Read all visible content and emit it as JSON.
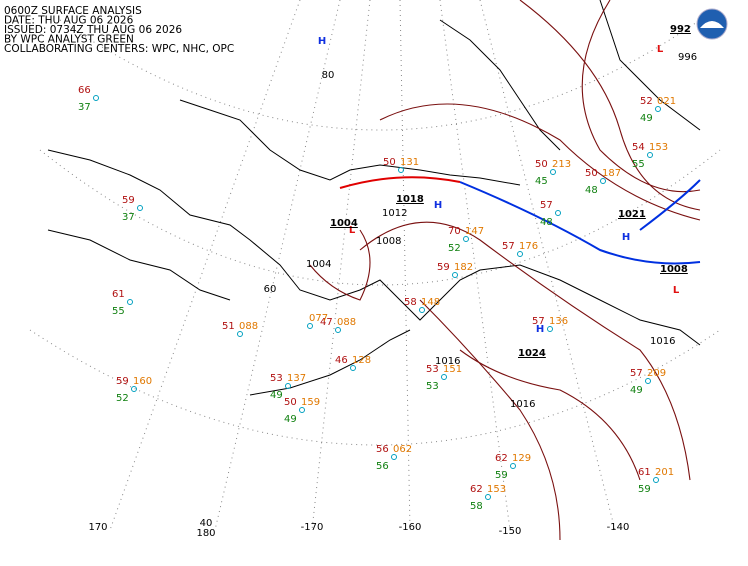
{
  "header": {
    "lines": [
      "0600Z SURFACE ANALYSIS",
      "DATE: THU AUG 06 2026",
      "ISSUED: 0734Z THU AUG 06 2026",
      "BY WPC ANALYST GREEN",
      "COLLABORATING CENTERS: WPC, NHC, OPC"
    ]
  },
  "pressure_centers": [
    {
      "symbol": "H",
      "pressure": "1018"
    },
    {
      "symbol": "H",
      "pressure": "1021"
    },
    {
      "symbol": "H",
      "pressure": "1024"
    },
    {
      "symbol": "H"
    },
    {
      "symbol": "L",
      "pressure": "992"
    },
    {
      "symbol": "L",
      "pressure": "1004"
    },
    {
      "symbol": "L",
      "pressure": "1008"
    }
  ],
  "isobar_labels": [
    "1004",
    "1008",
    "1012",
    "1016",
    "1016",
    "1016",
    "996"
  ],
  "graticule_labels": [
    "170",
    "180",
    "-170",
    "-160",
    "-150",
    "-140",
    "40",
    "60",
    "80"
  ],
  "stations": [
    {
      "temperature": "66",
      "dewpoint": "37"
    },
    {
      "temperature": "59",
      "dewpoint": "37"
    },
    {
      "temperature": "61",
      "dewpoint": "55"
    },
    {
      "temperature": "59",
      "dewpoint": "52",
      "pressure": "160"
    },
    {
      "temperature": "51",
      "pressure": "088"
    },
    {
      "temperature": "53",
      "dewpoint": "49",
      "pressure": "137"
    },
    {
      "temperature": "50",
      "dewpoint": "49",
      "pressure": "159"
    },
    {
      "temperature": "46",
      "pressure": "128"
    },
    {
      "temperature": "47",
      "pressure": "088"
    },
    {
      "pressure": "077"
    },
    {
      "temperature": "56",
      "dewpoint": "56",
      "pressure": "062"
    },
    {
      "temperature": "62",
      "dewpoint": "59",
      "pressure": "129"
    },
    {
      "temperature": "62",
      "dewpoint": "58",
      "pressure": "153"
    },
    {
      "temperature": "61",
      "dewpoint": "59",
      "pressure": "201"
    },
    {
      "temperature": "57",
      "dewpoint": "49",
      "pressure": "209"
    },
    {
      "temperature": "53",
      "dewpoint": "53",
      "pressure": "151"
    },
    {
      "temperature": "57",
      "pressure": "136"
    },
    {
      "temperature": "70",
      "dewpoint": "52",
      "pressure": "147"
    },
    {
      "temperature": "57",
      "pressure": "176"
    },
    {
      "temperature": "58",
      "pressure": "148"
    },
    {
      "temperature": "50",
      "pressure": "131"
    },
    {
      "temperature": "57",
      "dewpoint": "48"
    },
    {
      "temperature": "50",
      "dewpoint": "45",
      "pressure": "213"
    },
    {
      "temperature": "52",
      "dewpoint": "49",
      "pressure": "021"
    },
    {
      "temperature": "54",
      "dewpoint": "55",
      "pressure": "153"
    },
    {
      "temperature": "50",
      "dewpoint": "48",
      "pressure": "187"
    },
    {
      "temperature": "59",
      "pressure": "182"
    }
  ]
}
